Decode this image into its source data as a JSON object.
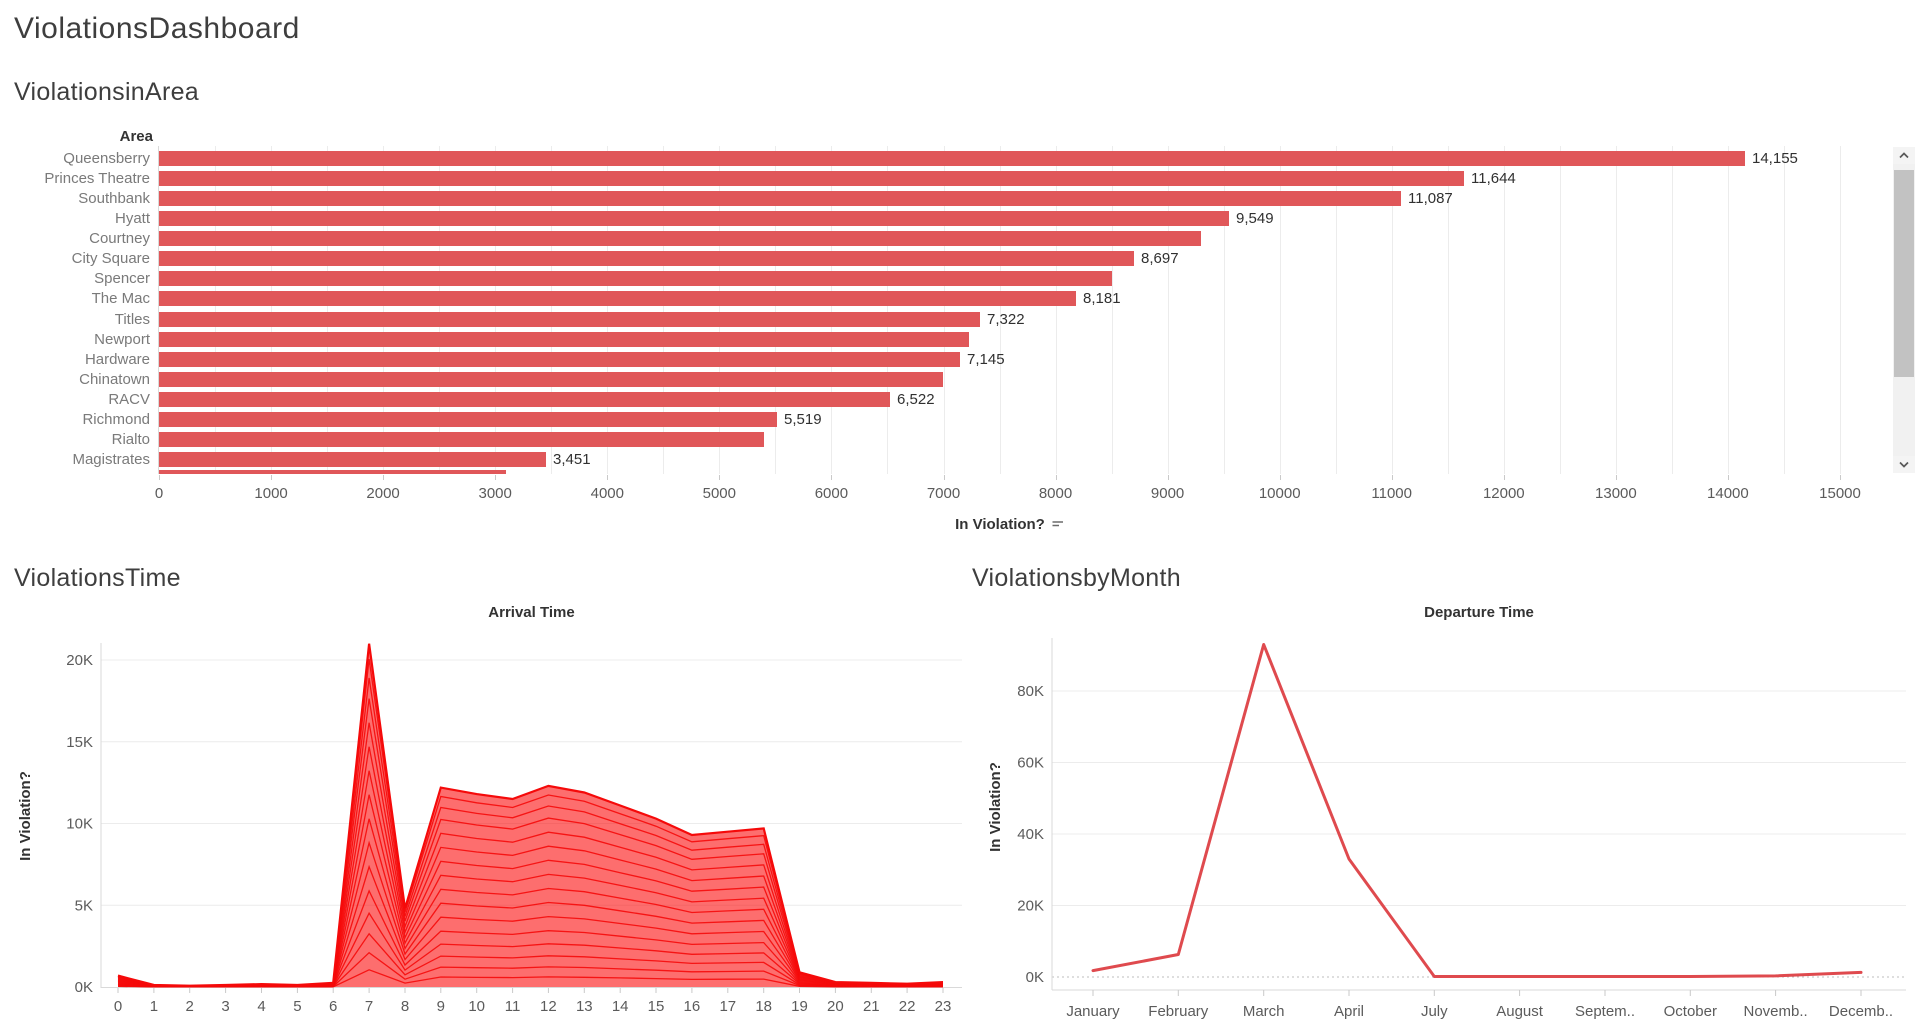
{
  "titles": {
    "dashboard": "ViolationsDashboard"
  },
  "colors": {
    "bar": "#e05759",
    "area_fill": "rgba(251,13,13,0.60)",
    "area_line": "#f50a0a",
    "line": "#df4a4e",
    "grid": "#ececec",
    "axis": "#d9d9d9",
    "tick_text": "#5b5b5b",
    "label_text": "#7a7a7a",
    "value_text": "#303030",
    "heading_text": "#3e3e3e"
  },
  "chart_data": [
    {
      "type": "bar",
      "title": "ViolationsinArea",
      "column_header": "Area",
      "xlabel": "In Violation?",
      "sort": "descending",
      "xlim": [
        0,
        15000
      ],
      "x_ticks": [
        "0",
        "1000",
        "2000",
        "3000",
        "4000",
        "5000",
        "6000",
        "7000",
        "8000",
        "9000",
        "10000",
        "11000",
        "12000",
        "13000",
        "14000",
        "15000"
      ],
      "categories": [
        "Queensberry",
        "Princes Theatre",
        "Southbank",
        "Hyatt",
        "Courtney",
        "City Square",
        "Spencer",
        "The Mac",
        "Titles",
        "Newport",
        "Hardware",
        "Chinatown",
        "RACV",
        "Richmond",
        "Rialto",
        "Magistrates"
      ],
      "values": [
        14155,
        11644,
        11087,
        9549,
        9300,
        8697,
        8500,
        8181,
        7322,
        7230,
        7145,
        7000,
        6522,
        5519,
        5400,
        3451
      ],
      "value_labels": [
        "14,155",
        "11,644",
        "11,087",
        "9,549",
        "",
        "8,697",
        "",
        "8,181",
        "7,322",
        "",
        "7,145",
        "",
        "6,522",
        "5,519",
        "",
        "3,451"
      ],
      "partial_row_value": 3100
    },
    {
      "type": "area",
      "section_title": "ViolationsTime",
      "title": "Arrival Time",
      "ylabel": "In Violation?",
      "x": [
        0,
        1,
        2,
        3,
        4,
        5,
        6,
        7,
        8,
        9,
        10,
        11,
        12,
        13,
        14,
        15,
        16,
        17,
        18,
        19,
        20,
        21,
        22,
        23
      ],
      "totals_k": [
        0.7,
        0.12,
        0.08,
        0.12,
        0.18,
        0.12,
        0.25,
        21,
        4.8,
        12.2,
        11.8,
        11.5,
        12.3,
        11.9,
        11.1,
        10.3,
        9.3,
        9.5,
        9.7,
        0.9,
        0.3,
        0.25,
        0.2,
        0.3
      ],
      "y_ticks": [
        "0K",
        "5K",
        "10K",
        "15K",
        "20K"
      ],
      "y_ticks_k": [
        0,
        5,
        10,
        15,
        20
      ],
      "ylim_k": [
        0,
        21.5
      ],
      "band_fractions": [
        0.05,
        0.1,
        0.155,
        0.215,
        0.28,
        0.35,
        0.42,
        0.49,
        0.56,
        0.63,
        0.7,
        0.77,
        0.84,
        0.9,
        0.955
      ],
      "stacked": true
    },
    {
      "type": "line",
      "section_title": "ViolationsbyMonth",
      "title": "Departure Time",
      "ylabel": "In Violation?",
      "categories": [
        "January",
        "February",
        "March",
        "April",
        "July",
        "August",
        "Septem..",
        "October",
        "Novemb..",
        "Decemb.."
      ],
      "values_k": [
        1.8,
        6.3,
        93,
        33,
        0.15,
        0.15,
        0.15,
        0.15,
        0.3,
        1.3
      ],
      "y_ticks": [
        "0K",
        "20K",
        "40K",
        "60K",
        "80K"
      ],
      "y_ticks_k": [
        0,
        20,
        40,
        60,
        80
      ],
      "ylim_k": [
        0,
        95
      ]
    }
  ]
}
